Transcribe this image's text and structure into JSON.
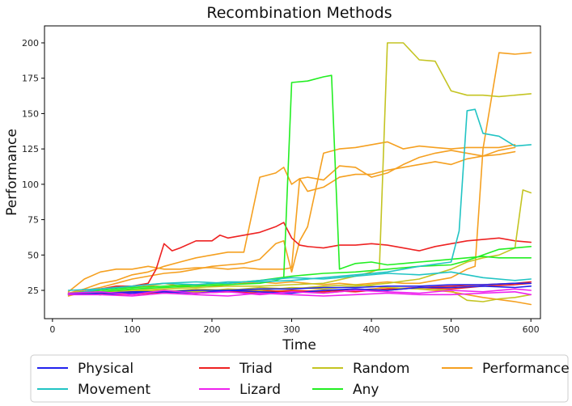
{
  "chart_data": {
    "type": "line",
    "title": "Recombination Methods",
    "xlabel": "Time",
    "ylabel": "Performance",
    "xlim": [
      -10,
      612
    ],
    "ylim": [
      5,
      212
    ],
    "xticks": [
      0,
      100,
      200,
      300,
      400,
      500,
      600
    ],
    "yticks": [
      25,
      50,
      75,
      100,
      125,
      150,
      175,
      200
    ],
    "grid": false,
    "legend": {
      "placement": "bottom",
      "columns": 4,
      "entries": [
        {
          "label": "Physical",
          "color": "#2222ee"
        },
        {
          "label": "Movement",
          "color": "#22c4c4"
        },
        {
          "label": "Triad",
          "color": "#ee2222"
        },
        {
          "label": "Lizard",
          "color": "#ee22ee"
        },
        {
          "label": "Random",
          "color": "#c4c422"
        },
        {
          "label": "Any",
          "color": "#22ee22"
        },
        {
          "label": "Performance",
          "color": "#f5a020"
        }
      ]
    },
    "series": [
      {
        "group": "Performance",
        "color": "#f5a020",
        "x": [
          20,
          40,
          60,
          80,
          100,
          120,
          140,
          160,
          180,
          200,
          220,
          240,
          260,
          280,
          290,
          300,
          310,
          320,
          340,
          360,
          380,
          400,
          420,
          440,
          460,
          480,
          500,
          520,
          540,
          560,
          580
        ],
        "y": [
          23,
          26,
          30,
          32,
          36,
          38,
          42,
          45,
          48,
          50,
          52,
          52,
          105,
          108,
          112,
          100,
          104,
          105,
          103,
          113,
          112,
          105,
          108,
          114,
          119,
          122,
          124,
          122,
          120,
          121,
          123
        ]
      },
      {
        "group": "Performance",
        "color": "#f5a020",
        "x": [
          20,
          40,
          60,
          80,
          100,
          120,
          140,
          160,
          180,
          200,
          220,
          240,
          260,
          280,
          290,
          300,
          310,
          320,
          340,
          360,
          380,
          400,
          420,
          440,
          460,
          480,
          500,
          520,
          540,
          560,
          580
        ],
        "y": [
          22,
          25,
          27,
          30,
          33,
          35,
          37,
          38,
          40,
          42,
          43,
          44,
          47,
          58,
          60,
          38,
          60,
          70,
          122,
          125,
          126,
          128,
          130,
          125,
          127,
          126,
          125,
          126,
          126,
          126,
          128
        ]
      },
      {
        "group": "Performance",
        "color": "#f5a020",
        "x": [
          20,
          40,
          60,
          80,
          100,
          120,
          140,
          160,
          180,
          200,
          220,
          240,
          260,
          280,
          290,
          300,
          310,
          320,
          340,
          360,
          380,
          400,
          420,
          440,
          460,
          480,
          500,
          520,
          540,
          560,
          580
        ],
        "y": [
          24,
          33,
          38,
          40,
          40,
          42,
          40,
          40,
          41,
          41,
          40,
          41,
          40,
          40,
          40,
          41,
          104,
          95,
          98,
          105,
          107,
          107,
          110,
          112,
          114,
          116,
          114,
          118,
          120,
          124,
          126
        ]
      },
      {
        "group": "Performance",
        "color": "#f5a020",
        "x": [
          20,
          40,
          60,
          80,
          100,
          120,
          140,
          160,
          180,
          200,
          220,
          240,
          260,
          280,
          300,
          320,
          340,
          360,
          380,
          400,
          420,
          440,
          460,
          480,
          500,
          520,
          530,
          540,
          560,
          580,
          600
        ],
        "y": [
          21,
          24,
          26,
          27,
          27,
          28,
          30,
          28,
          29,
          28,
          29,
          30,
          31,
          30,
          31,
          30,
          29,
          30,
          29,
          30,
          31,
          30,
          30,
          32,
          34,
          40,
          42,
          125,
          193,
          192,
          193
        ]
      },
      {
        "group": "Performance",
        "color": "#f5a020",
        "x": [
          20,
          60,
          100,
          140,
          180,
          220,
          260,
          300,
          340,
          380,
          420,
          460,
          500,
          540,
          580,
          600
        ],
        "y": [
          22,
          23,
          24,
          25,
          24,
          25,
          24,
          25,
          23,
          25,
          27,
          26,
          24,
          20,
          17,
          15
        ]
      },
      {
        "group": "Triad",
        "color": "#ee2222",
        "x": [
          20,
          40,
          60,
          80,
          100,
          120,
          130,
          140,
          150,
          160,
          180,
          200,
          210,
          220,
          240,
          260,
          280,
          290,
          300,
          310,
          320,
          340,
          360,
          380,
          400,
          420,
          440,
          460,
          480,
          500,
          520,
          540,
          560,
          580,
          600
        ],
        "y": [
          22,
          24,
          26,
          28,
          28,
          30,
          40,
          58,
          53,
          55,
          60,
          60,
          64,
          62,
          64,
          66,
          70,
          73,
          62,
          57,
          56,
          55,
          57,
          57,
          58,
          57,
          55,
          53,
          56,
          58,
          60,
          61,
          62,
          60,
          59
        ]
      },
      {
        "group": "Triad",
        "color": "#ee2222",
        "x": [
          20,
          60,
          100,
          140,
          180,
          220,
          260,
          300,
          340,
          380,
          420,
          460,
          500,
          540,
          580,
          600
        ],
        "y": [
          22,
          23,
          22,
          24,
          23,
          24,
          25,
          24,
          25,
          24,
          26,
          27,
          28,
          29,
          30,
          31
        ]
      },
      {
        "group": "Triad",
        "color": "#ee2222",
        "x": [
          20,
          60,
          100,
          140,
          180,
          220,
          260,
          300,
          340,
          380,
          420,
          460,
          500,
          540,
          580,
          600
        ],
        "y": [
          23,
          22,
          24,
          23,
          25,
          24,
          23,
          25,
          24,
          26,
          25,
          27,
          26,
          28,
          29,
          30
        ]
      },
      {
        "group": "Random",
        "color": "#c4c422",
        "x": [
          20,
          60,
          100,
          140,
          180,
          220,
          260,
          300,
          340,
          380,
          400,
          410,
          420,
          440,
          460,
          480,
          500,
          520,
          540,
          560,
          580,
          600
        ],
        "y": [
          22,
          24,
          25,
          26,
          27,
          28,
          28,
          29,
          30,
          35,
          38,
          40,
          200,
          200,
          188,
          187,
          166,
          163,
          163,
          162,
          163,
          164
        ]
      },
      {
        "group": "Random",
        "color": "#c4c422",
        "x": [
          20,
          60,
          100,
          140,
          180,
          220,
          260,
          300,
          340,
          380,
          420,
          460,
          500,
          520,
          540,
          560,
          580,
          590,
          600
        ],
        "y": [
          22,
          23,
          24,
          25,
          24,
          26,
          25,
          27,
          26,
          28,
          30,
          33,
          40,
          45,
          48,
          50,
          55,
          96,
          94
        ]
      },
      {
        "group": "Random",
        "color": "#c4c422",
        "x": [
          20,
          60,
          100,
          140,
          180,
          220,
          260,
          300,
          340,
          380,
          420,
          460,
          500,
          520,
          540,
          560,
          580,
          600
        ],
        "y": [
          23,
          24,
          25,
          24,
          26,
          25,
          27,
          26,
          28,
          29,
          27,
          26,
          25,
          18,
          17,
          19,
          20,
          22
        ]
      },
      {
        "group": "Any",
        "color": "#22ee22",
        "x": [
          20,
          60,
          100,
          140,
          180,
          220,
          260,
          280,
          290,
          300,
          320,
          340,
          350,
          360,
          380,
          400,
          420,
          440,
          460,
          480,
          500,
          520,
          540,
          560,
          580,
          600
        ],
        "y": [
          22,
          24,
          26,
          27,
          28,
          29,
          30,
          32,
          34,
          172,
          173,
          176,
          177,
          40,
          44,
          45,
          43,
          44,
          45,
          46,
          47,
          48,
          49,
          48,
          48,
          48
        ]
      },
      {
        "group": "Any",
        "color": "#22ee22",
        "x": [
          20,
          60,
          100,
          140,
          180,
          220,
          260,
          300,
          340,
          380,
          420,
          460,
          500,
          520,
          540,
          560,
          580,
          600
        ],
        "y": [
          23,
          25,
          27,
          28,
          29,
          30,
          32,
          35,
          37,
          38,
          40,
          42,
          43,
          46,
          50,
          54,
          55,
          56
        ]
      },
      {
        "group": "Movement",
        "color": "#22c4c4",
        "x": [
          20,
          60,
          100,
          140,
          180,
          220,
          260,
          300,
          340,
          380,
          420,
          460,
          500,
          510,
          520,
          530,
          540,
          560,
          580,
          600
        ],
        "y": [
          25,
          26,
          28,
          30,
          29,
          31,
          31,
          32,
          34,
          36,
          38,
          42,
          45,
          67,
          152,
          153,
          136,
          134,
          127,
          128
        ]
      },
      {
        "group": "Movement",
        "color": "#22c4c4",
        "x": [
          20,
          60,
          100,
          140,
          180,
          220,
          260,
          300,
          340,
          380,
          420,
          460,
          500,
          540,
          580,
          600
        ],
        "y": [
          22,
          26,
          28,
          30,
          31,
          30,
          32,
          34,
          33,
          35,
          37,
          36,
          38,
          34,
          32,
          33
        ]
      },
      {
        "group": "Physical",
        "color": "#2222ee",
        "x": [
          20,
          60,
          100,
          140,
          180,
          220,
          260,
          300,
          340,
          380,
          420,
          460,
          500,
          540,
          580,
          600
        ],
        "y": [
          22,
          23,
          24,
          24,
          25,
          25,
          26,
          26,
          27,
          27,
          28,
          28,
          29,
          29,
          30,
          30
        ]
      },
      {
        "group": "Physical",
        "color": "#2222ee",
        "x": [
          20,
          60,
          100,
          140,
          180,
          220,
          260,
          300,
          340,
          380,
          420,
          460,
          500,
          540,
          580,
          600
        ],
        "y": [
          23,
          22,
          23,
          24,
          23,
          25,
          24,
          23,
          25,
          26,
          25,
          27,
          27,
          28,
          27,
          28
        ]
      },
      {
        "group": "Lizard",
        "color": "#ee22ee",
        "x": [
          20,
          60,
          100,
          140,
          180,
          220,
          260,
          300,
          340,
          380,
          420,
          460,
          500,
          540,
          580,
          600
        ],
        "y": [
          22,
          22,
          21,
          23,
          22,
          21,
          23,
          22,
          21,
          22,
          23,
          22,
          22,
          23,
          24,
          22
        ]
      },
      {
        "group": "Lizard",
        "color": "#ee22ee",
        "x": [
          20,
          60,
          100,
          140,
          180,
          220,
          260,
          300,
          340,
          380,
          420,
          460,
          500,
          540,
          580,
          600
        ],
        "y": [
          23,
          24,
          22,
          25,
          23,
          24,
          22,
          24,
          23,
          25,
          24,
          23,
          25,
          24,
          26,
          25
        ]
      }
    ]
  }
}
